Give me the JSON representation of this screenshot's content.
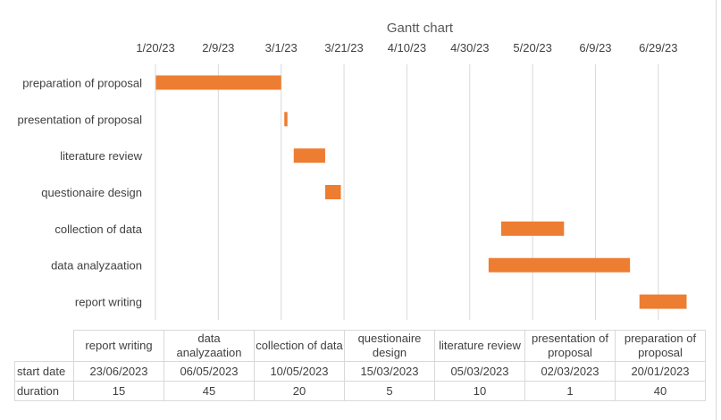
{
  "chart_data": {
    "type": "gantt",
    "title": "Gantt chart",
    "x_axis": {
      "type": "date",
      "ticks": [
        "1/20/23",
        "2/9/23",
        "3/1/23",
        "3/21/23",
        "4/10/23",
        "4/30/23",
        "5/20/23",
        "6/9/23",
        "6/29/23"
      ],
      "range": [
        "2023-01-20",
        "2023-07-09"
      ],
      "position": "top",
      "grid": true
    },
    "tasks": [
      {
        "name": "preparation of proposal",
        "start": "2023-01-20",
        "duration": 40
      },
      {
        "name": "presentation of proposal",
        "start": "2023-03-02",
        "duration": 1
      },
      {
        "name": "literature review",
        "start": "2023-03-05",
        "duration": 10
      },
      {
        "name": "questionaire design",
        "start": "2023-03-15",
        "duration": 5
      },
      {
        "name": "collection of data",
        "start": "2023-05-10",
        "duration": 20
      },
      {
        "name": "data analyzaation",
        "start": "2023-05-06",
        "duration": 45
      },
      {
        "name": "report writing",
        "start": "2023-06-23",
        "duration": 15
      }
    ],
    "bar_color": "#ed7d31",
    "grid_color": "#d9d9d9"
  },
  "data_table": {
    "row_labels": [
      "start date",
      "duration"
    ],
    "columns": [
      {
        "header": "report writing",
        "start": "23/06/2023",
        "duration": "15"
      },
      {
        "header": "data analyzaation",
        "start": "06/05/2023",
        "duration": "45"
      },
      {
        "header": "collection of data",
        "start": "10/05/2023",
        "duration": "20"
      },
      {
        "header": "questionaire design",
        "start": "15/03/2023",
        "duration": "5"
      },
      {
        "header": "literature review",
        "start": "05/03/2023",
        "duration": "10"
      },
      {
        "header": "presentation of proposal",
        "start": "02/03/2023",
        "duration": "1"
      },
      {
        "header": "preparation of proposal",
        "start": "20/01/2023",
        "duration": "40"
      }
    ]
  }
}
